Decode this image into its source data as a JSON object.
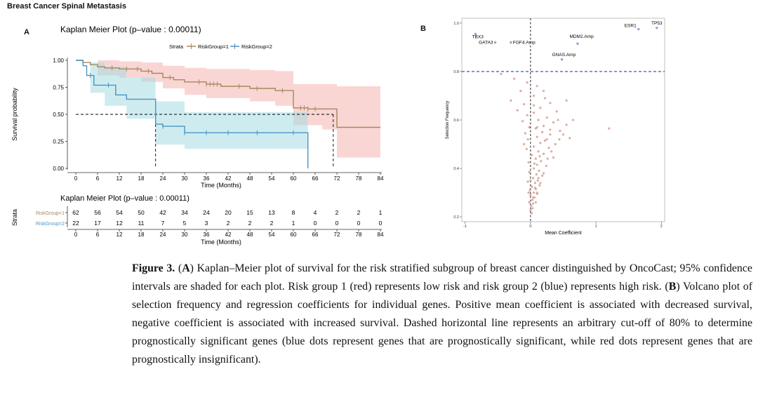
{
  "page": {
    "title": "Breast Cancer Spinal Metastasis"
  },
  "panels": {
    "a_label": "A",
    "b_label": "B"
  },
  "caption": {
    "label": "Figure 3.",
    "text_open_a": "(",
    "a": "A",
    "text_after_a": ") Kaplan–Meier plot of survival for the risk stratified subgroup of breast cancer distinguished by OncoCast; 95% confidence intervals are shaded for each plot. Risk group 1 (red) represents low risk and risk group 2 (blue) represents high risk. (",
    "b": "B",
    "text_after_b": ") Volcano plot of selection frequency and regression coefficients for individual genes. Positive mean coefficient is associated with decreased survival, negative coefficient is associated with increased survival. Dashed horizontal line represents an arbitrary cut-off of 80% to determine prognostically significant genes (blue dots represent genes that are prognostically significant, while red dots represent genes that are prognostically insignificant)."
  },
  "colors": {
    "group1_line": "#a8875a",
    "group1_ci": "#f4b4b0",
    "group2_line": "#4a94c4",
    "group2_ci": "#a6dce4",
    "dashed_cut": "#3b3bb0",
    "red_dot": "#d99a94",
    "tan_dot": "#c9a98a",
    "blue_dot": "#8aa6cf"
  },
  "chart_data": [
    {
      "type": "line",
      "id": "kaplan-meier",
      "title": "Kaplan Meier Plot (p–value : 0.00011)",
      "xlabel": "Time (Months)",
      "ylabel": "Survival probability",
      "xlim": [
        0,
        84
      ],
      "ylim": [
        0,
        1
      ],
      "x_ticks": [
        0,
        6,
        12,
        18,
        24,
        30,
        36,
        42,
        48,
        54,
        60,
        66,
        72,
        78,
        84
      ],
      "y_ticks": [
        "0.00",
        "0.25",
        "0.50",
        "0.75",
        "1.00"
      ],
      "y_tick_values": [
        0,
        0.25,
        0.5,
        0.75,
        1.0
      ],
      "legend": {
        "position": "top",
        "title": "Strata",
        "entries": [
          "RiskGroup=1",
          "RiskGroup=2"
        ]
      },
      "median_line": {
        "y": 0.5,
        "x_group2": 22,
        "x_group1": 71
      },
      "series": [
        {
          "name": "RiskGroup=1",
          "steps": [
            [
              0,
              1.0
            ],
            [
              2,
              0.98
            ],
            [
              4,
              0.96
            ],
            [
              6,
              0.94
            ],
            [
              8,
              0.93
            ],
            [
              12,
              0.92
            ],
            [
              18,
              0.9
            ],
            [
              21,
              0.88
            ],
            [
              24,
              0.84
            ],
            [
              27,
              0.82
            ],
            [
              30,
              0.8
            ],
            [
              36,
              0.78
            ],
            [
              40,
              0.76
            ],
            [
              48,
              0.74
            ],
            [
              55,
              0.72
            ],
            [
              60,
              0.56
            ],
            [
              64,
              0.55
            ],
            [
              68,
              0.55
            ],
            [
              72,
              0.38
            ],
            [
              84,
              0.38
            ]
          ],
          "ci_upper": [
            [
              0,
              1.0
            ],
            [
              6,
              1.0
            ],
            [
              12,
              0.99
            ],
            [
              18,
              0.98
            ],
            [
              24,
              0.95
            ],
            [
              30,
              0.93
            ],
            [
              36,
              0.92
            ],
            [
              48,
              0.91
            ],
            [
              55,
              0.9
            ],
            [
              60,
              0.78
            ],
            [
              72,
              0.76
            ],
            [
              84,
              0.76
            ]
          ],
          "ci_lower": [
            [
              0,
              1.0
            ],
            [
              6,
              0.86
            ],
            [
              12,
              0.84
            ],
            [
              18,
              0.8
            ],
            [
              24,
              0.74
            ],
            [
              30,
              0.68
            ],
            [
              36,
              0.65
            ],
            [
              48,
              0.62
            ],
            [
              55,
              0.58
            ],
            [
              60,
              0.4
            ],
            [
              68,
              0.36
            ],
            [
              72,
              0.1
            ],
            [
              84,
              0.1
            ]
          ],
          "censor_x": [
            10,
            14,
            17,
            20,
            26,
            34,
            36,
            37,
            38,
            39,
            45,
            50,
            57,
            62,
            63,
            64,
            66
          ]
        },
        {
          "name": "RiskGroup=2",
          "steps": [
            [
              0,
              1.0
            ],
            [
              2,
              0.95
            ],
            [
              3,
              0.86
            ],
            [
              5,
              0.77
            ],
            [
              8,
              0.77
            ],
            [
              11,
              0.68
            ],
            [
              14,
              0.64
            ],
            [
              18,
              0.64
            ],
            [
              22,
              0.41
            ],
            [
              24,
              0.39
            ],
            [
              30,
              0.33
            ],
            [
              48,
              0.33
            ],
            [
              64,
              0.33
            ],
            [
              64,
              0.0
            ]
          ],
          "ci_upper": [
            [
              0,
              1.0
            ],
            [
              4,
              0.98
            ],
            [
              8,
              0.94
            ],
            [
              14,
              0.84
            ],
            [
              22,
              0.62
            ],
            [
              30,
              0.52
            ],
            [
              64,
              0.52
            ]
          ],
          "ci_lower": [
            [
              0,
              1.0
            ],
            [
              4,
              0.7
            ],
            [
              8,
              0.58
            ],
            [
              14,
              0.46
            ],
            [
              22,
              0.22
            ],
            [
              30,
              0.18
            ],
            [
              64,
              0.17
            ]
          ],
          "censor_x": [
            4,
            9,
            24,
            30,
            36,
            42,
            50,
            60
          ]
        }
      ]
    },
    {
      "type": "table",
      "id": "risk-table",
      "title": "Kaplan Meier Plot (p–value : 0.00011)",
      "xlabel": "Time (Months)",
      "ylabel": "Strata",
      "x_ticks": [
        0,
        6,
        12,
        18,
        24,
        30,
        36,
        42,
        48,
        54,
        60,
        66,
        72,
        78,
        84
      ],
      "rows": [
        {
          "name": "RiskGroup=1",
          "values": [
            62,
            56,
            54,
            50,
            42,
            34,
            24,
            20,
            15,
            13,
            8,
            4,
            2,
            2,
            1
          ]
        },
        {
          "name": "RiskGroup=2",
          "values": [
            22,
            17,
            12,
            11,
            7,
            5,
            3,
            2,
            2,
            2,
            1,
            0,
            0,
            0,
            0
          ]
        }
      ]
    },
    {
      "type": "scatter",
      "id": "volcano",
      "xlabel": "Mean Coefficient",
      "ylabel": "Selection Frequency",
      "xlim": [
        -1,
        2
      ],
      "ylim": [
        0.2,
        1.0
      ],
      "x_ticks": [
        "-1",
        "0",
        "1",
        "2"
      ],
      "x_tick_values": [
        -1,
        0,
        1,
        2
      ],
      "y_ticks": [
        "0.2",
        "0.4",
        "0.6",
        "0.8",
        "1.0"
      ],
      "y_tick_values": [
        0.2,
        0.4,
        0.6,
        0.8,
        1.0
      ],
      "cutoff_y": 0.8,
      "vertical_line_x": 0,
      "labels": [
        {
          "text": "TP53",
          "x": 1.93,
          "y": 0.98
        },
        {
          "text": "ESR1",
          "x": 1.65,
          "y": 0.975
        },
        {
          "text": "TBX3",
          "x": -0.84,
          "y": 0.955
        },
        {
          "text": "GATA3",
          "x": -0.54,
          "y": 0.92
        },
        {
          "text": "FGF4.Amp",
          "x": -0.3,
          "y": 0.92
        },
        {
          "text": "MDM2.Amp",
          "x": 0.78,
          "y": 0.93
        },
        {
          "text": "GNAS.Amp",
          "x": 0.51,
          "y": 0.855
        }
      ],
      "blue_points": [
        [
          1.93,
          0.98
        ],
        [
          1.65,
          0.975
        ],
        [
          -0.84,
          0.955
        ],
        [
          -0.54,
          0.92
        ],
        [
          -0.3,
          0.92
        ],
        [
          0.72,
          0.915
        ],
        [
          0.48,
          0.85
        ]
      ],
      "red_points": [
        [
          -0.45,
          0.79
        ],
        [
          -0.25,
          0.77
        ],
        [
          -0.05,
          0.755
        ],
        [
          0.1,
          0.74
        ],
        [
          -0.15,
          0.72
        ],
        [
          0.05,
          0.7
        ],
        [
          0.22,
          0.69
        ],
        [
          -0.3,
          0.68
        ],
        [
          0.3,
          0.67
        ],
        [
          -0.1,
          0.665
        ],
        [
          0.15,
          0.65
        ],
        [
          -0.2,
          0.64
        ],
        [
          0.4,
          0.635
        ],
        [
          0.05,
          0.63
        ],
        [
          -0.05,
          0.62
        ],
        [
          0.25,
          0.61
        ],
        [
          0.12,
          0.6
        ],
        [
          -0.12,
          0.595
        ],
        [
          0.35,
          0.59
        ],
        [
          0.55,
          0.58
        ],
        [
          0.2,
          0.575
        ],
        [
          -0.02,
          0.57
        ],
        [
          0.08,
          0.565
        ],
        [
          1.2,
          0.565
        ],
        [
          0.45,
          0.555
        ],
        [
          0.18,
          0.55
        ],
        [
          -0.08,
          0.545
        ],
        [
          0.3,
          0.54
        ],
        [
          0.1,
          0.53
        ],
        [
          0.6,
          0.525
        ],
        [
          -0.04,
          0.52
        ],
        [
          0.22,
          0.515
        ],
        [
          0.15,
          0.505
        ],
        [
          0.38,
          0.5
        ],
        [
          0.05,
          0.49
        ],
        [
          0.28,
          0.485
        ],
        [
          -0.06,
          0.48
        ],
        [
          0.12,
          0.47
        ],
        [
          0.2,
          0.46
        ],
        [
          0.02,
          0.455
        ],
        [
          0.35,
          0.445
        ],
        [
          0.08,
          0.44
        ],
        [
          0.16,
          0.43
        ],
        [
          -0.03,
          0.425
        ],
        [
          0.1,
          0.415
        ],
        [
          0.24,
          0.41
        ],
        [
          0.05,
          0.4
        ],
        [
          0.13,
          0.39
        ],
        [
          -0.02,
          0.385
        ],
        [
          0.09,
          0.375
        ],
        [
          0.18,
          0.37
        ],
        [
          0.04,
          0.36
        ],
        [
          0.11,
          0.35
        ],
        [
          -0.04,
          0.345
        ],
        [
          0.07,
          0.34
        ],
        [
          0.14,
          0.33
        ],
        [
          0.02,
          0.325
        ],
        [
          0.08,
          0.315
        ],
        [
          -0.01,
          0.31
        ],
        [
          0.05,
          0.3
        ],
        [
          0.1,
          0.295
        ],
        [
          0.0,
          0.29
        ],
        [
          0.06,
          0.28
        ],
        [
          0.03,
          0.27
        ],
        [
          -0.02,
          0.26
        ],
        [
          0.04,
          0.255
        ],
        [
          0.01,
          0.245
        ],
        [
          0.03,
          0.235
        ],
        [
          0.0,
          0.225
        ],
        [
          0.02,
          0.215
        ]
      ],
      "tan_points": [
        [
          0.2,
          0.72
        ],
        [
          0.55,
          0.68
        ],
        [
          0.05,
          0.66
        ],
        [
          0.65,
          0.6
        ],
        [
          0.3,
          0.56
        ],
        [
          0.42,
          0.6
        ],
        [
          0.1,
          0.57
        ],
        [
          0.5,
          0.54
        ],
        [
          0.25,
          0.52
        ],
        [
          -0.1,
          0.5
        ],
        [
          0.32,
          0.47
        ],
        [
          0.14,
          0.45
        ],
        [
          0.06,
          0.42
        ],
        [
          0.2,
          0.38
        ],
        [
          0.12,
          0.36
        ],
        [
          0.0,
          0.35
        ],
        [
          0.07,
          0.32
        ],
        [
          0.1,
          0.3
        ],
        [
          0.04,
          0.28
        ],
        [
          -0.03,
          0.3
        ],
        [
          0.08,
          0.26
        ],
        [
          0.15,
          0.34
        ],
        [
          0.26,
          0.44
        ],
        [
          0.44,
          0.52
        ]
      ]
    }
  ]
}
